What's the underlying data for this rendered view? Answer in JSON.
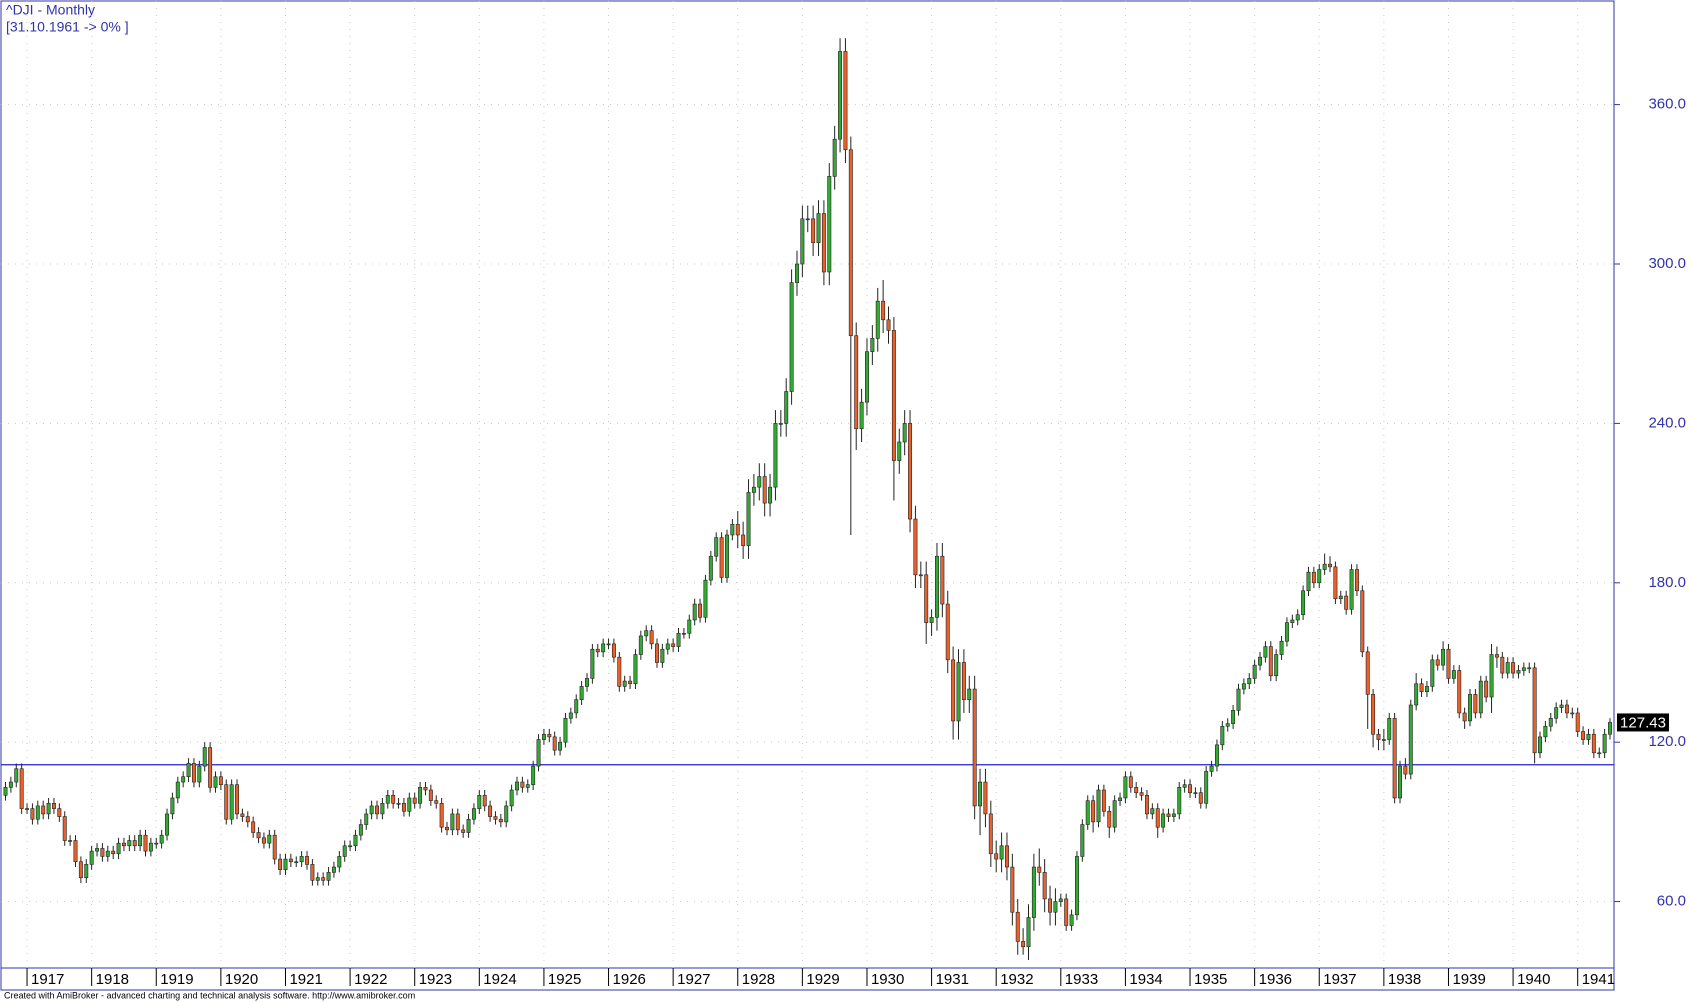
{
  "chart_data": {
    "type": "candlestick",
    "title": "^DJI - Monthly",
    "subtitle": "[31.10.1961 -> 0% ]",
    "footer": "Created with AmiBroker - advanced charting and technical analysis software. http://www.amibroker.com",
    "up_color": "#33aa33",
    "down_color": "#e8602c",
    "axis_color": "#3333aa",
    "ylim": [
      35,
      399
    ],
    "yticks": [
      {
        "value": 60,
        "label": "60.0"
      },
      {
        "value": 120,
        "label": "120.0"
      },
      {
        "value": 180,
        "label": "180.0"
      },
      {
        "value": 240,
        "label": "240.0"
      },
      {
        "value": 300,
        "label": "300.0"
      },
      {
        "value": 360,
        "label": "360.0"
      }
    ],
    "xlim": [
      0,
      298
    ],
    "xticks": [
      {
        "value": 4,
        "label": "1917"
      },
      {
        "value": 16,
        "label": "1918"
      },
      {
        "value": 28,
        "label": "1919"
      },
      {
        "value": 40,
        "label": "1920"
      },
      {
        "value": 52,
        "label": "1921"
      },
      {
        "value": 64,
        "label": "1922"
      },
      {
        "value": 76,
        "label": "1923"
      },
      {
        "value": 88,
        "label": "1924"
      },
      {
        "value": 100,
        "label": "1925"
      },
      {
        "value": 112,
        "label": "1926"
      },
      {
        "value": 124,
        "label": "1927"
      },
      {
        "value": 136,
        "label": "1928"
      },
      {
        "value": 148,
        "label": "1929"
      },
      {
        "value": 160,
        "label": "1930"
      },
      {
        "value": 172,
        "label": "1931"
      },
      {
        "value": 184,
        "label": "1932"
      },
      {
        "value": 196,
        "label": "1933"
      },
      {
        "value": 208,
        "label": "1934"
      },
      {
        "value": 220,
        "label": "1935"
      },
      {
        "value": 232,
        "label": "1936"
      },
      {
        "value": 244,
        "label": "1937"
      },
      {
        "value": 256,
        "label": "1938"
      },
      {
        "value": 268,
        "label": "1939"
      },
      {
        "value": 280,
        "label": "1940"
      },
      {
        "value": 292,
        "label": "1941"
      }
    ],
    "grid": true,
    "hline": 111.5,
    "last_label": "127.43",
    "open": [
      100,
      103,
      105,
      110,
      95,
      95,
      91,
      96,
      93,
      97,
      95,
      92,
      83,
      83,
      75,
      69,
      74,
      79,
      80,
      77,
      79,
      78,
      82,
      81,
      83,
      81,
      85,
      79,
      82,
      82,
      85,
      93,
      99,
      105,
      107,
      112,
      105,
      111,
      118,
      103,
      107,
      104,
      91,
      104,
      93,
      92,
      90,
      86,
      84,
      82,
      85,
      76,
      72,
      76,
      75,
      75,
      77,
      74,
      68,
      69,
      68,
      71,
      73,
      77,
      81,
      81,
      85,
      89,
      93,
      96,
      93,
      97,
      100,
      97,
      97,
      94,
      99,
      97,
      103,
      102,
      98,
      97,
      88,
      87,
      93,
      87,
      86,
      91,
      95,
      100,
      96,
      92,
      91,
      90,
      96,
      102,
      105,
      103,
      104,
      111,
      121,
      123,
      122,
      117,
      120,
      129,
      131,
      136,
      141,
      144,
      155,
      154,
      157,
      157,
      152,
      141,
      143,
      142,
      153,
      160,
      162,
      157,
      150,
      155,
      157,
      156,
      161,
      161,
      166,
      172,
      167,
      181,
      190,
      197,
      182,
      198,
      202,
      198,
      194,
      214,
      216,
      220,
      210,
      216,
      240,
      240,
      252,
      293,
      300,
      317,
      317,
      308,
      319,
      297,
      333,
      347,
      380,
      343,
      273,
      238,
      248,
      267,
      272,
      286,
      279,
      275,
      226,
      233,
      240,
      204,
      183,
      183,
      165,
      167,
      190,
      172,
      151,
      128,
      150,
      136,
      140,
      96,
      105,
      93,
      78,
      76,
      81,
      73,
      56,
      45,
      43,
      54,
      73,
      71,
      61,
      56,
      60,
      61,
      51,
      55,
      77,
      89,
      98,
      90,
      102,
      94,
      88,
      98,
      99,
      107,
      103,
      101,
      100,
      93,
      95,
      88,
      93,
      92,
      93,
      103,
      104,
      101,
      101,
      97,
      109,
      111,
      119,
      126,
      127,
      132,
      140,
      142,
      144,
      149,
      152,
      156,
      145,
      153,
      158,
      165,
      166,
      168,
      177,
      184,
      180,
      185,
      187,
      186,
      174,
      175,
      170,
      185,
      177,
      154,
      138,
      123,
      121,
      121,
      129,
      99,
      111,
      108,
      134,
      142,
      139,
      141,
      151,
      149,
      155,
      144,
      147,
      131,
      128,
      138,
      131,
      143,
      137,
      153,
      152,
      146,
      150,
      146,
      147,
      148,
      148,
      116,
      122,
      126,
      129,
      133,
      134,
      131,
      131,
      124,
      121,
      123,
      116,
      116,
      123
    ],
    "high": [
      105,
      107,
      112,
      112,
      97,
      97,
      98,
      98,
      99,
      99,
      97,
      94,
      85,
      85,
      77,
      76,
      81,
      82,
      82,
      81,
      81,
      84,
      84,
      85,
      85,
      87,
      87,
      84,
      84,
      87,
      95,
      101,
      107,
      109,
      114,
      114,
      113,
      120,
      120,
      109,
      109,
      106,
      106,
      106,
      95,
      94,
      92,
      88,
      86,
      87,
      87,
      78,
      78,
      78,
      77,
      79,
      79,
      76,
      71,
      71,
      73,
      75,
      79,
      83,
      83,
      87,
      91,
      95,
      98,
      98,
      99,
      102,
      102,
      99,
      99,
      101,
      101,
      105,
      105,
      104,
      100,
      99,
      90,
      95,
      95,
      89,
      93,
      97,
      102,
      102,
      98,
      94,
      93,
      98,
      104,
      107,
      107,
      106,
      113,
      123,
      125,
      125,
      124,
      122,
      131,
      133,
      138,
      143,
      146,
      157,
      157,
      159,
      159,
      159,
      154,
      145,
      145,
      155,
      162,
      164,
      164,
      159,
      157,
      159,
      159,
      163,
      163,
      168,
      174,
      174,
      183,
      192,
      199,
      199,
      200,
      204,
      207,
      203,
      219,
      221,
      225,
      225,
      221,
      245,
      245,
      257,
      298,
      305,
      322,
      322,
      322,
      324,
      324,
      338,
      352,
      385,
      385,
      348,
      278,
      253,
      272,
      277,
      291,
      294,
      284,
      280,
      238,
      245,
      245,
      209,
      188,
      188,
      170,
      195,
      195,
      177,
      156,
      155,
      155,
      145,
      145,
      110,
      110,
      98,
      83,
      86,
      86,
      78,
      61,
      50,
      59,
      78,
      80,
      76,
      66,
      65,
      63,
      63,
      57,
      79,
      91,
      100,
      100,
      104,
      104,
      96,
      100,
      101,
      109,
      109,
      105,
      103,
      102,
      97,
      97,
      95,
      95,
      95,
      105,
      106,
      106,
      103,
      103,
      111,
      113,
      121,
      128,
      129,
      134,
      142,
      144,
      146,
      151,
      154,
      158,
      158,
      155,
      160,
      167,
      168,
      170,
      179,
      186,
      186,
      187,
      191,
      190,
      188,
      177,
      177,
      187,
      187,
      179,
      156,
      140,
      125,
      125,
      131,
      131,
      113,
      114,
      136,
      146,
      144,
      143,
      153,
      153,
      158,
      157,
      149,
      149,
      133,
      140,
      140,
      145,
      145,
      157,
      156,
      154,
      152,
      152,
      149,
      150,
      150,
      150,
      124,
      128,
      131,
      135,
      136,
      136,
      133,
      133,
      126,
      125,
      125,
      118,
      125,
      129
    ],
    "low": [
      98,
      101,
      103,
      93,
      93,
      89,
      89,
      91,
      91,
      93,
      90,
      81,
      81,
      73,
      67,
      67,
      72,
      77,
      75,
      75,
      76,
      76,
      79,
      79,
      79,
      79,
      77,
      77,
      80,
      80,
      83,
      91,
      97,
      103,
      105,
      103,
      103,
      109,
      101,
      101,
      102,
      89,
      89,
      91,
      90,
      88,
      84,
      82,
      80,
      80,
      74,
      70,
      70,
      73,
      73,
      73,
      72,
      66,
      66,
      66,
      66,
      69,
      71,
      75,
      79,
      79,
      83,
      87,
      91,
      91,
      91,
      95,
      95,
      95,
      92,
      92,
      95,
      95,
      100,
      96,
      95,
      86,
      85,
      85,
      85,
      84,
      84,
      89,
      93,
      94,
      90,
      89,
      88,
      88,
      94,
      100,
      101,
      101,
      102,
      109,
      119,
      120,
      115,
      115,
      118,
      127,
      129,
      134,
      139,
      142,
      152,
      152,
      155,
      150,
      139,
      139,
      140,
      140,
      151,
      158,
      155,
      148,
      148,
      153,
      154,
      154,
      159,
      159,
      164,
      165,
      165,
      179,
      188,
      180,
      180,
      196,
      193,
      189,
      189,
      209,
      211,
      205,
      205,
      211,
      235,
      235,
      247,
      288,
      295,
      312,
      303,
      303,
      292,
      292,
      328,
      342,
      338,
      198,
      230,
      233,
      243,
      262,
      267,
      274,
      270,
      211,
      221,
      228,
      199,
      178,
      178,
      157,
      160,
      162,
      167,
      146,
      121,
      121,
      131,
      131,
      91,
      85,
      88,
      73,
      71,
      71,
      68,
      51,
      40,
      40,
      38,
      49,
      66,
      56,
      51,
      51,
      58,
      49,
      49,
      53,
      75,
      87,
      86,
      88,
      92,
      84,
      86,
      96,
      97,
      101,
      99,
      98,
      91,
      91,
      84,
      86,
      90,
      90,
      91,
      101,
      99,
      99,
      95,
      95,
      107,
      109,
      117,
      124,
      125,
      130,
      138,
      140,
      142,
      147,
      150,
      143,
      143,
      151,
      156,
      163,
      164,
      166,
      175,
      178,
      178,
      183,
      184,
      172,
      172,
      168,
      168,
      175,
      152,
      125,
      118,
      117,
      117,
      119,
      97,
      97,
      106,
      106,
      132,
      137,
      137,
      139,
      147,
      147,
      142,
      142,
      129,
      125,
      126,
      129,
      129,
      135,
      131,
      148,
      144,
      144,
      144,
      144,
      145,
      146,
      112,
      114,
      120,
      124,
      127,
      131,
      129,
      129,
      122,
      119,
      119,
      114,
      114,
      114,
      121
    ],
    "close": [
      103,
      105,
      110,
      95,
      95,
      91,
      96,
      93,
      97,
      95,
      92,
      83,
      83,
      75,
      69,
      74,
      79,
      80,
      77,
      79,
      78,
      82,
      81,
      83,
      81,
      85,
      79,
      82,
      82,
      85,
      93,
      99,
      105,
      107,
      112,
      105,
      111,
      118,
      103,
      107,
      104,
      91,
      104,
      93,
      92,
      90,
      86,
      84,
      82,
      85,
      76,
      72,
      76,
      75,
      75,
      77,
      74,
      68,
      69,
      68,
      71,
      73,
      77,
      81,
      81,
      85,
      89,
      93,
      96,
      93,
      97,
      100,
      97,
      97,
      94,
      99,
      97,
      103,
      102,
      98,
      97,
      88,
      87,
      93,
      87,
      86,
      91,
      95,
      100,
      96,
      92,
      91,
      90,
      96,
      102,
      105,
      103,
      104,
      111,
      121,
      123,
      122,
      117,
      120,
      129,
      131,
      136,
      141,
      144,
      155,
      154,
      157,
      157,
      152,
      141,
      143,
      142,
      153,
      160,
      162,
      157,
      150,
      155,
      157,
      156,
      161,
      161,
      166,
      172,
      167,
      181,
      190,
      197,
      182,
      198,
      202,
      198,
      194,
      214,
      216,
      220,
      210,
      216,
      240,
      240,
      252,
      293,
      300,
      317,
      317,
      308,
      319,
      297,
      333,
      347,
      380,
      343,
      273,
      238,
      248,
      267,
      272,
      286,
      279,
      275,
      226,
      233,
      240,
      204,
      183,
      183,
      165,
      167,
      190,
      172,
      151,
      128,
      150,
      136,
      140,
      96,
      105,
      93,
      78,
      76,
      81,
      73,
      56,
      45,
      43,
      54,
      73,
      71,
      61,
      56,
      60,
      61,
      51,
      55,
      77,
      89,
      98,
      90,
      102,
      94,
      88,
      98,
      99,
      107,
      103,
      101,
      100,
      93,
      95,
      88,
      93,
      92,
      93,
      103,
      104,
      101,
      101,
      97,
      109,
      111,
      119,
      126,
      127,
      132,
      140,
      142,
      144,
      149,
      152,
      156,
      145,
      153,
      158,
      165,
      166,
      168,
      177,
      184,
      180,
      185,
      187,
      186,
      174,
      175,
      170,
      185,
      177,
      154,
      138,
      123,
      121,
      121,
      129,
      99,
      111,
      108,
      134,
      142,
      139,
      141,
      151,
      149,
      155,
      144,
      147,
      131,
      128,
      138,
      131,
      143,
      137,
      153,
      152,
      146,
      150,
      146,
      147,
      148,
      148,
      116,
      122,
      126,
      129,
      133,
      134,
      131,
      131,
      124,
      121,
      123,
      116,
      116,
      123,
      127.43
    ]
  }
}
